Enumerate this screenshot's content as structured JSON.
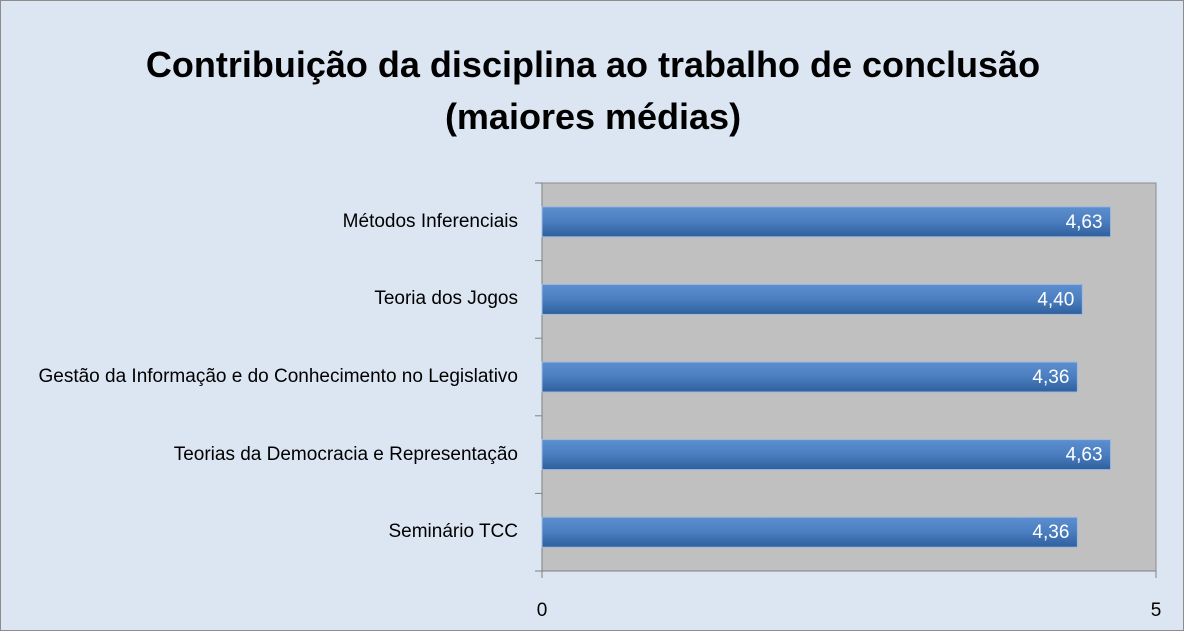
{
  "chart_data": {
    "type": "barh",
    "title": "Contribuição da disciplina ao trabalho de conclusão (maiores médias)",
    "categories": [
      "Métodos Inferenciais",
      "Teoria dos Jogos",
      "Gestão da Informação e do Conhecimento no Legislativo",
      "Teorias da Democracia e Representação",
      "Seminário TCC"
    ],
    "values": [
      4.63,
      4.4,
      4.36,
      4.63,
      4.36
    ],
    "value_labels": [
      "4,63",
      "4,40",
      "4,36",
      "4,63",
      "4,36"
    ],
    "color": "#4f81bd",
    "xlim": [
      0,
      5
    ],
    "xticks": [
      0,
      5
    ],
    "grid": false
  }
}
